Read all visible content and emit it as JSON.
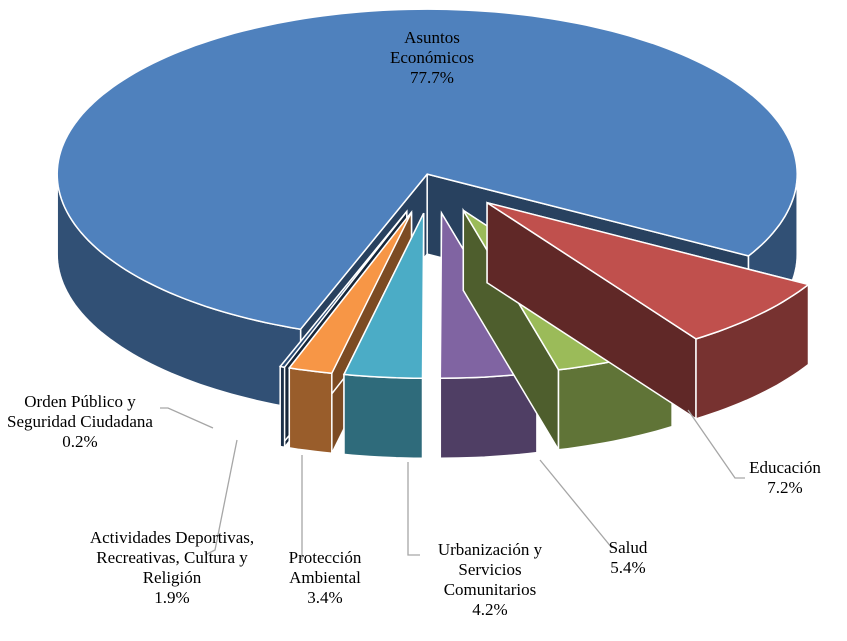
{
  "chart_data": {
    "type": "pie",
    "categories": [
      "Asuntos Económicos",
      "Educación",
      "Salud",
      "Urbanización y Servicios Comunitarios",
      "Protección Ambiental",
      "Actividades Deportivas, Recreativas, Cultura y Religión",
      "Orden Público y Seguridad Ciudadana"
    ],
    "values": [
      77.7,
      7.2,
      5.4,
      4.2,
      3.4,
      1.9,
      0.2
    ],
    "value_labels": [
      "77.7%",
      "7.2%",
      "5.4%",
      "4.2%",
      "3.4%",
      "1.9%",
      "0.2%"
    ],
    "colors": [
      "#4f81bd",
      "#c0504d",
      "#9bbb59",
      "#8064a2",
      "#4bacc6",
      "#f79646",
      "#2c4d75"
    ]
  }
}
